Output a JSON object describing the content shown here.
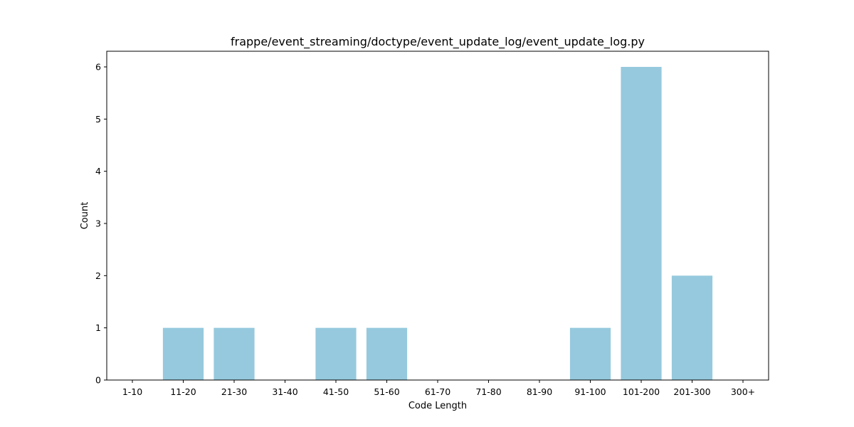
{
  "chart_data": {
    "type": "bar",
    "title": "frappe/event_streaming/doctype/event_update_log/event_update_log.py",
    "xlabel": "Code Length",
    "ylabel": "Count",
    "categories": [
      "1-10",
      "11-20",
      "21-30",
      "31-40",
      "41-50",
      "51-60",
      "61-70",
      "71-80",
      "81-90",
      "91-100",
      "101-200",
      "201-300",
      "300+"
    ],
    "values": [
      0,
      1,
      1,
      0,
      1,
      1,
      0,
      0,
      0,
      1,
      6,
      2,
      0
    ],
    "ylim": [
      0,
      6.3
    ],
    "yticks": [
      0,
      1,
      2,
      3,
      4,
      5,
      6
    ],
    "bar_color": "#96c9dd",
    "grid": false,
    "legend": "none"
  }
}
